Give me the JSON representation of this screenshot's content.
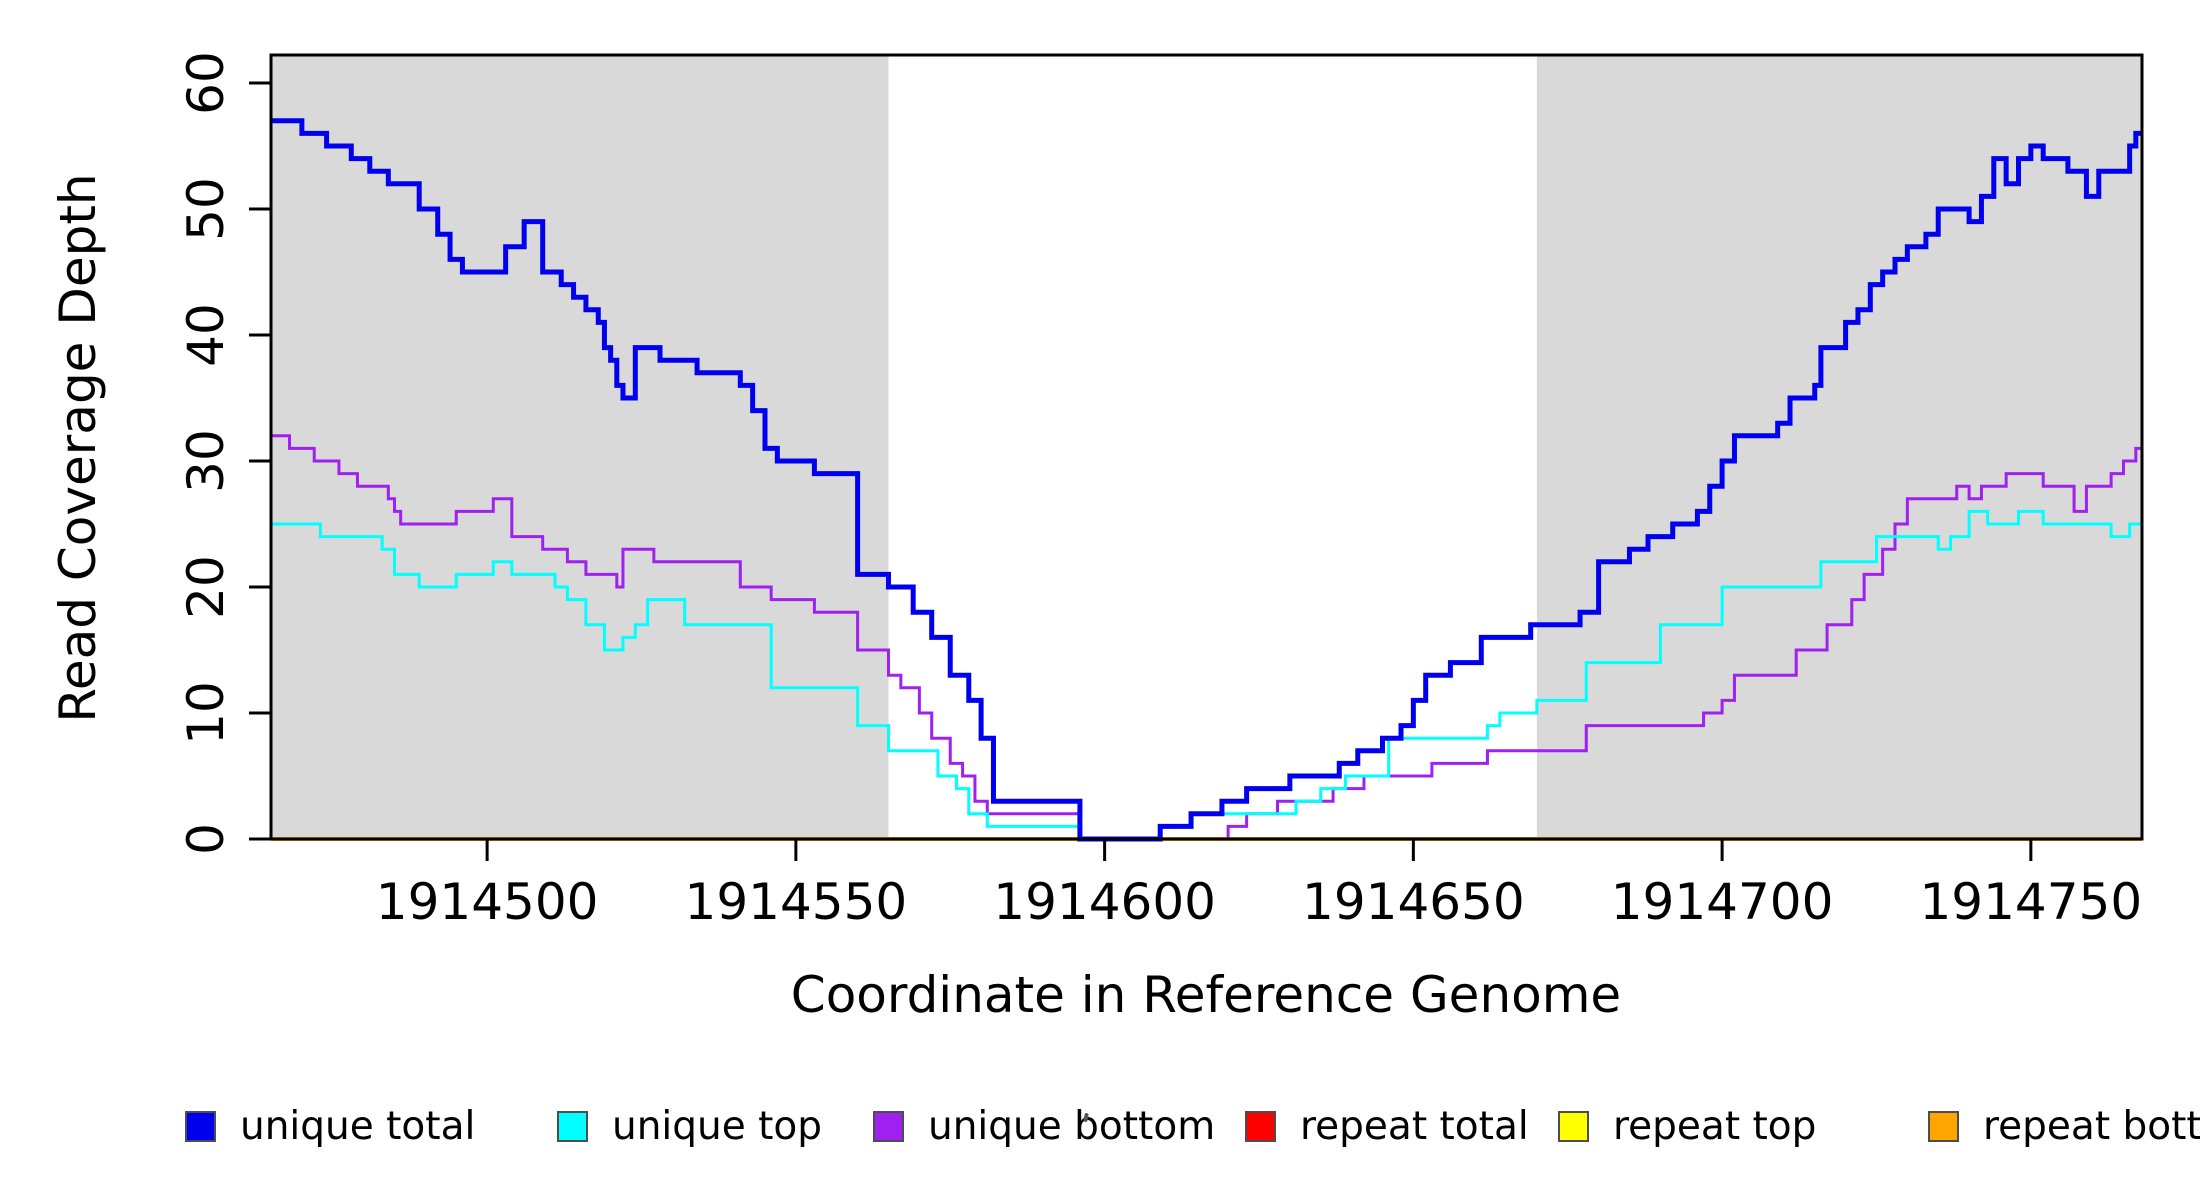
{
  "chart_data": {
    "type": "line",
    "subtype": "step",
    "title": "",
    "xlabel": "Coordinate in Reference Genome",
    "ylabel": "Read Coverage Depth",
    "xlim": [
      1914465,
      1914768
    ],
    "ylim": [
      0,
      62
    ],
    "xticks": [
      1914500,
      1914550,
      1914600,
      1914650,
      1914700,
      1914750
    ],
    "yticks": [
      0,
      10,
      20,
      30,
      40,
      50,
      60
    ],
    "grid": false,
    "background": "#ffffff",
    "plot_border_color": "#000000",
    "shaded_regions": [
      {
        "name": "left-repeat-region",
        "x0": 1914465,
        "x1": 1914565,
        "color": "#d9d9d9"
      },
      {
        "name": "right-repeat-region",
        "x0": 1914670,
        "x1": 1914768,
        "color": "#d9d9d9"
      }
    ],
    "legend_position": "bottom",
    "series": [
      {
        "name": "unique total",
        "color": "#0000ee",
        "width": 5,
        "steps": [
          [
            1914465,
            57
          ],
          [
            1914470,
            56
          ],
          [
            1914474,
            55
          ],
          [
            1914478,
            54
          ],
          [
            1914481,
            53
          ],
          [
            1914484,
            52
          ],
          [
            1914489,
            50
          ],
          [
            1914492,
            48
          ],
          [
            1914494,
            46
          ],
          [
            1914496,
            45
          ],
          [
            1914503,
            47
          ],
          [
            1914506,
            49
          ],
          [
            1914509,
            45
          ],
          [
            1914512,
            44
          ],
          [
            1914514,
            43
          ],
          [
            1914516,
            42
          ],
          [
            1914518,
            41
          ],
          [
            1914519,
            39
          ],
          [
            1914520,
            38
          ],
          [
            1914521,
            36
          ],
          [
            1914522,
            35
          ],
          [
            1914524,
            39
          ],
          [
            1914528,
            38
          ],
          [
            1914534,
            37
          ],
          [
            1914541,
            36
          ],
          [
            1914543,
            34
          ],
          [
            1914545,
            31
          ],
          [
            1914547,
            30
          ],
          [
            1914553,
            29
          ],
          [
            1914560,
            21
          ],
          [
            1914565,
            20
          ],
          [
            1914569,
            18
          ],
          [
            1914572,
            16
          ],
          [
            1914575,
            13
          ],
          [
            1914578,
            11
          ],
          [
            1914580,
            8
          ],
          [
            1914582,
            3
          ],
          [
            1914596,
            0
          ],
          [
            1914609,
            1
          ],
          [
            1914614,
            2
          ],
          [
            1914619,
            3
          ],
          [
            1914623,
            4
          ],
          [
            1914630,
            5
          ],
          [
            1914638,
            6
          ],
          [
            1914641,
            7
          ],
          [
            1914645,
            8
          ],
          [
            1914648,
            9
          ],
          [
            1914650,
            11
          ],
          [
            1914652,
            13
          ],
          [
            1914656,
            14
          ],
          [
            1914661,
            16
          ],
          [
            1914669,
            17
          ],
          [
            1914677,
            18
          ],
          [
            1914680,
            22
          ],
          [
            1914685,
            23
          ],
          [
            1914688,
            24
          ],
          [
            1914692,
            25
          ],
          [
            1914696,
            26
          ],
          [
            1914698,
            28
          ],
          [
            1914700,
            30
          ],
          [
            1914702,
            32
          ],
          [
            1914709,
            33
          ],
          [
            1914711,
            35
          ],
          [
            1914715,
            36
          ],
          [
            1914716,
            39
          ],
          [
            1914720,
            41
          ],
          [
            1914722,
            42
          ],
          [
            1914724,
            44
          ],
          [
            1914726,
            45
          ],
          [
            1914728,
            46
          ],
          [
            1914730,
            47
          ],
          [
            1914733,
            48
          ],
          [
            1914735,
            50
          ],
          [
            1914740,
            49
          ],
          [
            1914742,
            51
          ],
          [
            1914744,
            54
          ],
          [
            1914746,
            52
          ],
          [
            1914748,
            54
          ],
          [
            1914750,
            55
          ],
          [
            1914752,
            54
          ],
          [
            1914756,
            53
          ],
          [
            1914759,
            51
          ],
          [
            1914761,
            53
          ],
          [
            1914766,
            55
          ],
          [
            1914767,
            56
          ]
        ]
      },
      {
        "name": "unique top",
        "color": "#00ffff",
        "width": 3,
        "steps": [
          [
            1914465,
            25
          ],
          [
            1914473,
            24
          ],
          [
            1914483,
            23
          ],
          [
            1914485,
            21
          ],
          [
            1914489,
            20
          ],
          [
            1914495,
            21
          ],
          [
            1914501,
            22
          ],
          [
            1914504,
            21
          ],
          [
            1914511,
            20
          ],
          [
            1914513,
            19
          ],
          [
            1914516,
            17
          ],
          [
            1914519,
            15
          ],
          [
            1914522,
            16
          ],
          [
            1914524,
            17
          ],
          [
            1914526,
            19
          ],
          [
            1914532,
            17
          ],
          [
            1914546,
            12
          ],
          [
            1914560,
            9
          ],
          [
            1914565,
            7
          ],
          [
            1914573,
            5
          ],
          [
            1914576,
            4
          ],
          [
            1914578,
            2
          ],
          [
            1914581,
            1
          ],
          [
            1914596,
            0
          ],
          [
            1914609,
            1
          ],
          [
            1914614,
            2
          ],
          [
            1914631,
            3
          ],
          [
            1914635,
            4
          ],
          [
            1914639,
            5
          ],
          [
            1914646,
            8
          ],
          [
            1914662,
            9
          ],
          [
            1914664,
            10
          ],
          [
            1914670,
            11
          ],
          [
            1914678,
            14
          ],
          [
            1914690,
            17
          ],
          [
            1914700,
            20
          ],
          [
            1914716,
            22
          ],
          [
            1914725,
            24
          ],
          [
            1914735,
            23
          ],
          [
            1914737,
            24
          ],
          [
            1914740,
            26
          ],
          [
            1914743,
            25
          ],
          [
            1914748,
            26
          ],
          [
            1914752,
            25
          ],
          [
            1914763,
            24
          ],
          [
            1914766,
            25
          ]
        ]
      },
      {
        "name": "unique bottom",
        "color": "#a020f0",
        "width": 3,
        "steps": [
          [
            1914465,
            32
          ],
          [
            1914468,
            31
          ],
          [
            1914472,
            30
          ],
          [
            1914476,
            29
          ],
          [
            1914479,
            28
          ],
          [
            1914484,
            27
          ],
          [
            1914485,
            26
          ],
          [
            1914486,
            25
          ],
          [
            1914495,
            26
          ],
          [
            1914501,
            27
          ],
          [
            1914504,
            24
          ],
          [
            1914509,
            23
          ],
          [
            1914513,
            22
          ],
          [
            1914516,
            21
          ],
          [
            1914521,
            20
          ],
          [
            1914522,
            23
          ],
          [
            1914527,
            22
          ],
          [
            1914541,
            20
          ],
          [
            1914546,
            19
          ],
          [
            1914553,
            18
          ],
          [
            1914560,
            15
          ],
          [
            1914565,
            13
          ],
          [
            1914567,
            12
          ],
          [
            1914570,
            10
          ],
          [
            1914572,
            8
          ],
          [
            1914575,
            6
          ],
          [
            1914577,
            5
          ],
          [
            1914579,
            3
          ],
          [
            1914581,
            2
          ],
          [
            1914596,
            0
          ],
          [
            1914620,
            1
          ],
          [
            1914623,
            2
          ],
          [
            1914628,
            3
          ],
          [
            1914637,
            4
          ],
          [
            1914642,
            5
          ],
          [
            1914653,
            6
          ],
          [
            1914662,
            7
          ],
          [
            1914678,
            9
          ],
          [
            1914697,
            10
          ],
          [
            1914700,
            11
          ],
          [
            1914702,
            13
          ],
          [
            1914712,
            15
          ],
          [
            1914717,
            17
          ],
          [
            1914721,
            19
          ],
          [
            1914723,
            21
          ],
          [
            1914726,
            23
          ],
          [
            1914728,
            25
          ],
          [
            1914730,
            27
          ],
          [
            1914738,
            28
          ],
          [
            1914740,
            27
          ],
          [
            1914742,
            28
          ],
          [
            1914746,
            29
          ],
          [
            1914752,
            28
          ],
          [
            1914757,
            26
          ],
          [
            1914759,
            28
          ],
          [
            1914763,
            29
          ],
          [
            1914765,
            30
          ],
          [
            1914767,
            31
          ]
        ]
      },
      {
        "name": "repeat total",
        "color": "#ff0000",
        "width": 3,
        "steps": [
          [
            1914465,
            0
          ]
        ]
      },
      {
        "name": "repeat top",
        "color": "#ffff00",
        "width": 3,
        "steps": [
          [
            1914465,
            0
          ]
        ]
      },
      {
        "name": "repeat bottom",
        "color": "#ffa500",
        "width": 4,
        "steps": [
          [
            1914465,
            0
          ]
        ]
      }
    ],
    "legend": [
      {
        "label": "unique total",
        "color": "#0000ee"
      },
      {
        "label": "unique top",
        "color": "#00ffff"
      },
      {
        "label": "unique bottom",
        "color": "#a020f0"
      },
      {
        "label": "repeat total",
        "color": "#ff0000"
      },
      {
        "label": "repeat top",
        "color": "#ffff00"
      },
      {
        "label": "repeat bottom",
        "color": "#ffa500"
      }
    ]
  }
}
